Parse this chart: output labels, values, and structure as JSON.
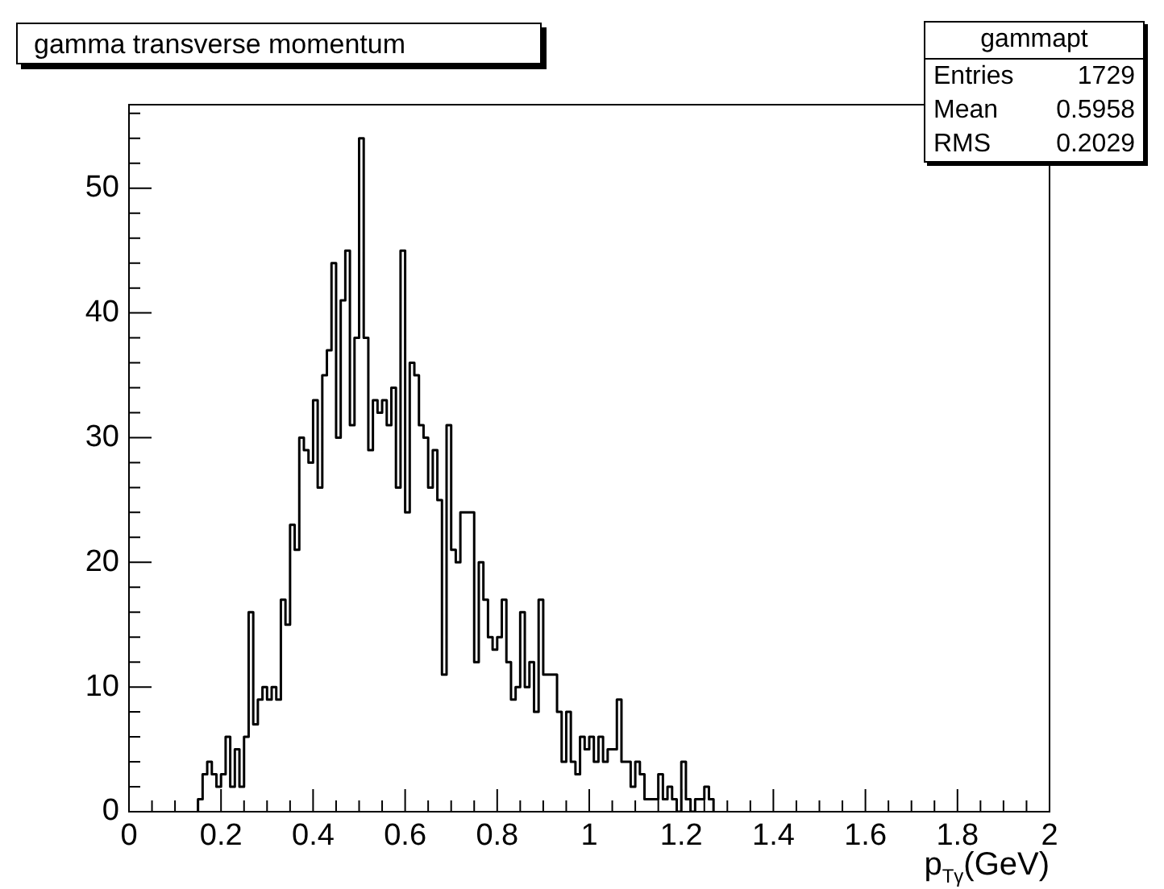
{
  "chart_data": {
    "type": "histogram",
    "title": "gamma transverse momentum",
    "xlabel": "p$_{Tγ}$(GeV)",
    "annotations": [
      "gammapt",
      "Entries 1729",
      "Mean 0.5958",
      "RMS 0.2029"
    ],
    "bins": [
      0.15,
      0.16,
      0.17,
      0.18,
      0.19,
      0.2,
      0.21,
      0.22,
      0.23,
      0.24,
      0.25,
      0.26,
      0.27,
      0.28,
      0.29,
      0.3,
      0.31,
      0.32,
      0.33,
      0.34,
      0.35,
      0.36,
      0.37,
      0.38,
      0.39,
      0.4,
      0.41,
      0.42,
      0.43,
      0.44,
      0.45,
      0.46,
      0.47,
      0.48,
      0.49,
      0.5,
      0.51,
      0.52,
      0.53,
      0.54,
      0.55,
      0.56,
      0.57,
      0.58,
      0.59,
      0.6,
      0.61,
      0.62,
      0.63,
      0.64,
      0.65,
      0.66,
      0.67,
      0.68,
      0.69,
      0.7,
      0.71,
      0.72,
      0.73,
      0.74,
      0.75,
      0.76,
      0.77,
      0.78,
      0.79,
      0.8,
      0.81,
      0.82,
      0.83,
      0.84,
      0.85,
      0.86,
      0.87,
      0.88,
      0.89,
      0.9,
      0.91,
      0.92,
      0.93,
      0.94,
      0.95,
      0.96,
      0.97,
      0.98,
      0.99,
      1.0,
      1.01,
      1.02,
      1.03,
      1.04,
      1.05,
      1.06,
      1.07,
      1.08,
      1.09,
      1.1,
      1.11,
      1.12,
      1.13,
      1.14,
      1.15,
      1.16,
      1.17,
      1.18,
      1.19,
      1.2,
      1.21,
      1.22,
      1.23,
      1.24,
      1.25,
      1.26,
      1.27
    ],
    "values": [
      1,
      3,
      4,
      3,
      2,
      3,
      6,
      2,
      5,
      2,
      6,
      16,
      7,
      9,
      10,
      9,
      10,
      9,
      17,
      15,
      23,
      21,
      30,
      29,
      28,
      33,
      26,
      35,
      37,
      44,
      30,
      41,
      45,
      31,
      38,
      54,
      38,
      29,
      33,
      32,
      33,
      31,
      34,
      26,
      45,
      24,
      36,
      35,
      31,
      30,
      26,
      29,
      25,
      11,
      31,
      21,
      20,
      24,
      24,
      24,
      12,
      20,
      17,
      14,
      13,
      14,
      17,
      12,
      9,
      10,
      16,
      10,
      12,
      8,
      17,
      11,
      11,
      11,
      8,
      4,
      8,
      4,
      3,
      6,
      5,
      6,
      4,
      6,
      4,
      5,
      5,
      9,
      4,
      4,
      2,
      4,
      3,
      1,
      1,
      1,
      3,
      1,
      2,
      1,
      0,
      4,
      1,
      0,
      1,
      1,
      2,
      1
    ],
    "color": "#000000",
    "xlim": [
      0,
      2
    ],
    "xticks": [
      0,
      {
        "value": 0.05,
        "label": null
      },
      {
        "value": 0.1,
        "label": null
      },
      {
        "value": 0.15,
        "label": null
      },
      0.2,
      {
        "value": 0.25,
        "label": null
      },
      {
        "value": 0.3,
        "label": null
      },
      {
        "value": 0.35,
        "label": null
      },
      0.4,
      {
        "value": 0.45,
        "label": null
      },
      {
        "value": 0.5,
        "label": null
      },
      {
        "value": 0.55,
        "label": null
      },
      0.6,
      {
        "value": 0.65,
        "label": null
      },
      {
        "value": 0.7,
        "label": null
      },
      {
        "value": 0.75,
        "label": null
      },
      0.8,
      {
        "value": 0.85,
        "label": null
      },
      {
        "value": 0.9,
        "label": null
      },
      {
        "value": 0.95,
        "label": null
      },
      1,
      {
        "value": 1.05,
        "label": null
      },
      {
        "value": 1.1,
        "label": null
      },
      {
        "value": 1.15,
        "label": null
      },
      1.2,
      {
        "value": 1.25,
        "label": null
      },
      {
        "value": 1.3,
        "label": null
      },
      {
        "value": 1.35,
        "label": null
      },
      1.4,
      {
        "value": 1.45,
        "label": null
      },
      {
        "value": 1.5,
        "label": null
      },
      {
        "value": 1.55,
        "label": null
      },
      1.6,
      {
        "value": 1.65,
        "label": null
      },
      {
        "value": 1.7,
        "label": null
      },
      {
        "value": 1.75,
        "label": null
      },
      1.8,
      {
        "value": 1.85,
        "label": null
      },
      {
        "value": 1.9,
        "label": null
      },
      {
        "value": 1.95,
        "label": null
      },
      2
    ],
    "ylim": [
      0,
      56.7
    ],
    "yticks": [
      0,
      {
        "value": 2,
        "label": null
      },
      {
        "value": 4,
        "label": null
      },
      {
        "value": 6,
        "label": null
      },
      {
        "value": 8,
        "label": null
      },
      10,
      {
        "value": 12,
        "label": null
      },
      {
        "value": 14,
        "label": null
      },
      {
        "value": 16,
        "label": null
      },
      {
        "value": 18,
        "label": null
      },
      20,
      {
        "value": 22,
        "label": null
      },
      {
        "value": 24,
        "label": null
      },
      {
        "value": 26,
        "label": null
      },
      {
        "value": 28,
        "label": null
      },
      30,
      {
        "value": 32,
        "label": null
      },
      {
        "value": 34,
        "label": null
      },
      {
        "value": 36,
        "label": null
      },
      {
        "value": 38,
        "label": null
      },
      40,
      {
        "value": 42,
        "label": null
      },
      {
        "value": 44,
        "label": null
      },
      {
        "value": 46,
        "label": null
      },
      {
        "value": 48,
        "label": null
      },
      50,
      {
        "value": 52,
        "label": null
      },
      {
        "value": 54,
        "label": null
      },
      {
        "value": 56,
        "label": null
      }
    ],
    "grid": false,
    "legend": false
  }
}
